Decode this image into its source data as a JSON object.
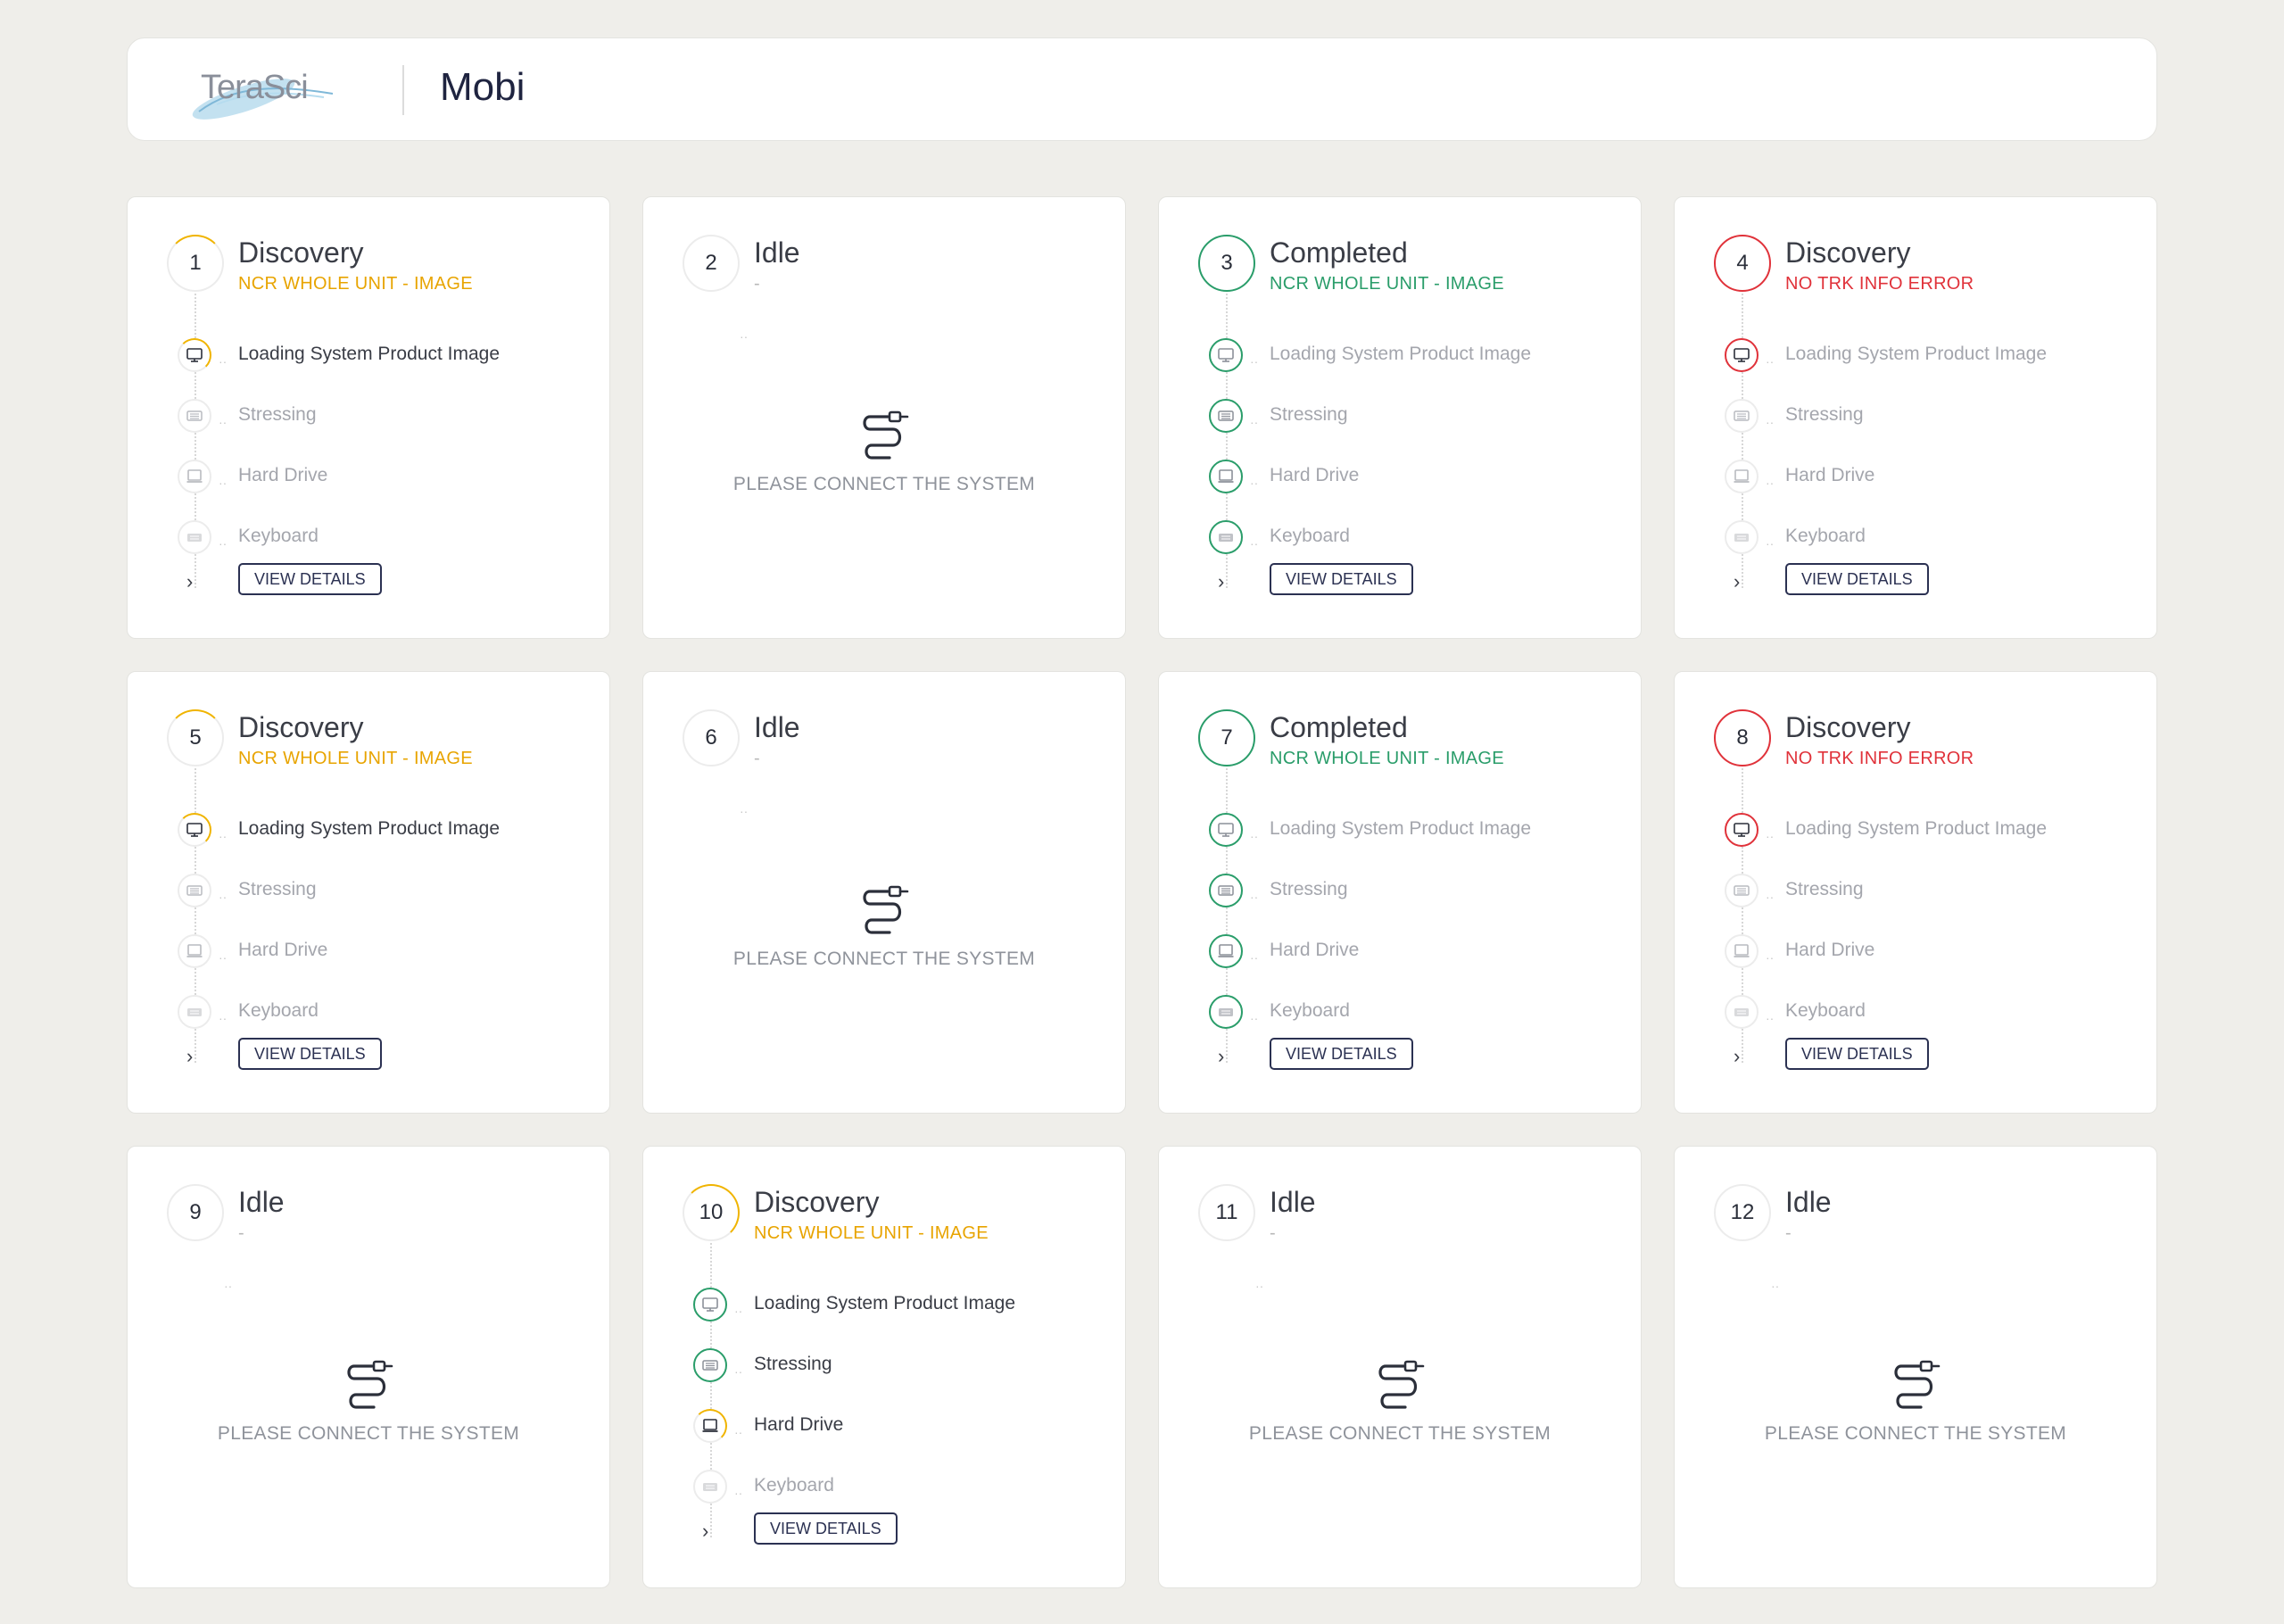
{
  "header": {
    "logo_text": "TeraSci",
    "title": "Mobi"
  },
  "icons": {
    "monitor": "monitor-icon",
    "stress": "cpu-icon",
    "drive": "laptop-icon",
    "keyboard": "keyboard-icon",
    "plug": "cable-plug-icon",
    "chevron": "chevron-right-icon"
  },
  "colors": {
    "yellow": "#f0b400",
    "green": "#2a9d6a",
    "red": "#e0323a",
    "navy": "#2b3152"
  },
  "view_details": "VIEW DETAILS",
  "connect_text": "PLEASE CONNECT THE SYSTEM",
  "cards": [
    {
      "number": "1",
      "status": "Discovery",
      "subtitle": "NCR WHOLE UNIT - IMAGE",
      "tone": "yellow",
      "steps": [
        {
          "label": "Loading System Product Image",
          "state": "active"
        },
        {
          "label": "Stressing",
          "state": "pending"
        },
        {
          "label": "Hard Drive",
          "state": "pending"
        },
        {
          "label": "Keyboard",
          "state": "pending"
        }
      ]
    },
    {
      "number": "2",
      "status": "Idle",
      "subtitle": "-",
      "tone": "idle"
    },
    {
      "number": "3",
      "status": "Completed",
      "subtitle": "NCR WHOLE UNIT - IMAGE",
      "tone": "green",
      "steps": [
        {
          "label": "Loading System Product Image",
          "state": "done"
        },
        {
          "label": "Stressing",
          "state": "done"
        },
        {
          "label": "Hard Drive",
          "state": "done"
        },
        {
          "label": "Keyboard",
          "state": "done"
        }
      ]
    },
    {
      "number": "4",
      "status": "Discovery",
      "subtitle": "NO TRK INFO ERROR",
      "tone": "red",
      "steps": [
        {
          "label": "Loading System Product Image",
          "state": "error"
        },
        {
          "label": "Stressing",
          "state": "pending"
        },
        {
          "label": "Hard Drive",
          "state": "pending"
        },
        {
          "label": "Keyboard",
          "state": "pending"
        }
      ]
    },
    {
      "number": "5",
      "status": "Discovery",
      "subtitle": "NCR WHOLE UNIT - IMAGE",
      "tone": "yellow",
      "steps": [
        {
          "label": "Loading System Product Image",
          "state": "active"
        },
        {
          "label": "Stressing",
          "state": "pending"
        },
        {
          "label": "Hard Drive",
          "state": "pending"
        },
        {
          "label": "Keyboard",
          "state": "pending"
        }
      ]
    },
    {
      "number": "6",
      "status": "Idle",
      "subtitle": "-",
      "tone": "idle"
    },
    {
      "number": "7",
      "status": "Completed",
      "subtitle": "NCR WHOLE UNIT - IMAGE",
      "tone": "green",
      "steps": [
        {
          "label": "Loading System Product Image",
          "state": "done"
        },
        {
          "label": "Stressing",
          "state": "done"
        },
        {
          "label": "Hard Drive",
          "state": "done"
        },
        {
          "label": "Keyboard",
          "state": "done"
        }
      ]
    },
    {
      "number": "8",
      "status": "Discovery",
      "subtitle": "NO TRK INFO ERROR",
      "tone": "red",
      "steps": [
        {
          "label": "Loading System Product Image",
          "state": "error"
        },
        {
          "label": "Stressing",
          "state": "pending"
        },
        {
          "label": "Hard Drive",
          "state": "pending"
        },
        {
          "label": "Keyboard",
          "state": "pending"
        }
      ]
    },
    {
      "number": "9",
      "status": "Idle",
      "subtitle": "-",
      "tone": "idle"
    },
    {
      "number": "10",
      "status": "Discovery",
      "subtitle": "NCR WHOLE UNIT - IMAGE",
      "tone": "yellowR",
      "steps": [
        {
          "label": "Loading System Product Image",
          "state": "done"
        },
        {
          "label": "Stressing",
          "state": "done"
        },
        {
          "label": "Hard Drive",
          "state": "active"
        },
        {
          "label": "Keyboard",
          "state": "pending"
        }
      ]
    },
    {
      "number": "11",
      "status": "Idle",
      "subtitle": "-",
      "tone": "idle"
    },
    {
      "number": "12",
      "status": "Idle",
      "subtitle": "-",
      "tone": "idle"
    }
  ]
}
